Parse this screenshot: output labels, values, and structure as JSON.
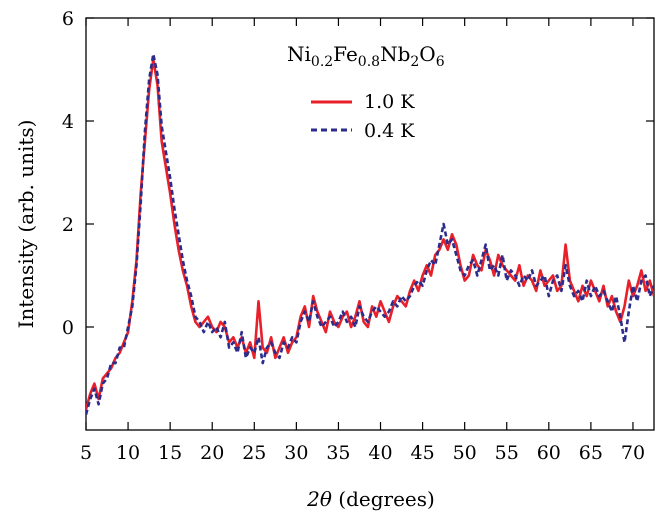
{
  "chart_data": {
    "type": "line",
    "title": "Ni",
    "title_parts": {
      "base1": "Ni",
      "sub1": "0.2",
      "base2": "Fe",
      "sub2": "0.8",
      "base3": "Nb",
      "sub3": "2",
      "base4": "O",
      "sub4": "6"
    },
    "xlabel_italic": "2θ",
    "xlabel_rest": " (degrees)",
    "ylabel": "Intensity (arb. units)",
    "xlim": [
      5,
      72.5
    ],
    "ylim": [
      -2,
      6
    ],
    "xticks": [
      5,
      10,
      15,
      20,
      25,
      30,
      35,
      40,
      45,
      50,
      55,
      60,
      65,
      70
    ],
    "xtick_labels": [
      "5",
      "10",
      "15",
      "20",
      "25",
      "30",
      "35",
      "40",
      "45",
      "50",
      "55",
      "60",
      "65",
      "70"
    ],
    "yticks": [
      0,
      2,
      4,
      6
    ],
    "ytick_labels": [
      "0",
      "2",
      "4",
      "6"
    ],
    "legend_position": "top-right",
    "series": [
      {
        "name": "1.0 K",
        "color": "#e8202a",
        "style": "solid",
        "x": [
          5,
          5.5,
          6,
          6.5,
          7,
          7.5,
          8,
          8.5,
          9,
          9.5,
          10,
          10.5,
          11,
          11.5,
          12,
          12.5,
          13,
          13.5,
          14,
          14.5,
          15,
          15.5,
          16,
          16.5,
          17,
          17.5,
          18,
          18.5,
          19,
          19.5,
          20,
          20.5,
          21,
          21.5,
          22,
          22.5,
          23,
          23.5,
          24,
          24.5,
          25,
          25.5,
          26,
          26.5,
          27,
          27.5,
          28,
          28.5,
          29,
          29.5,
          30,
          30.5,
          31,
          31.5,
          32,
          32.5,
          33,
          33.5,
          34,
          34.5,
          35,
          35.5,
          36,
          36.5,
          37,
          37.5,
          38,
          38.5,
          39,
          39.5,
          40,
          40.5,
          41,
          41.5,
          42,
          42.5,
          43,
          43.5,
          44,
          44.5,
          45,
          45.5,
          46,
          46.5,
          47,
          47.5,
          48,
          48.5,
          49,
          49.5,
          50,
          50.5,
          51,
          51.5,
          52,
          52.5,
          53,
          53.5,
          54,
          54.5,
          55,
          55.5,
          56,
          56.5,
          57,
          57.5,
          58,
          58.5,
          59,
          59.5,
          60,
          60.5,
          61,
          61.5,
          62,
          62.5,
          63,
          63.5,
          64,
          64.5,
          65,
          65.5,
          66,
          66.5,
          67,
          67.5,
          68,
          68.5,
          69,
          69.5,
          70,
          70.5,
          71,
          71.5,
          72,
          72.5
        ],
        "y": [
          -1.6,
          -1.3,
          -1.1,
          -1.4,
          -1.0,
          -0.9,
          -0.8,
          -0.6,
          -0.5,
          -0.3,
          -0.1,
          0.5,
          1.3,
          2.6,
          3.6,
          4.6,
          5.2,
          4.7,
          3.6,
          3.1,
          2.6,
          2.0,
          1.5,
          1.1,
          0.8,
          0.4,
          0.1,
          0.0,
          0.1,
          0.2,
          0.0,
          -0.1,
          0.1,
          0.0,
          -0.3,
          -0.2,
          -0.4,
          -0.2,
          -0.5,
          -0.3,
          -0.6,
          0.5,
          -0.4,
          -0.5,
          -0.2,
          -0.6,
          -0.4,
          -0.2,
          -0.5,
          -0.3,
          -0.2,
          0.2,
          0.4,
          0.0,
          0.6,
          0.3,
          0.1,
          -0.1,
          0.3,
          0.1,
          0.0,
          0.2,
          0.3,
          0.0,
          0.2,
          0.5,
          0.1,
          0.0,
          0.4,
          0.2,
          0.5,
          0.3,
          0.1,
          0.4,
          0.6,
          0.5,
          0.4,
          0.7,
          0.9,
          0.7,
          1.0,
          1.2,
          1.0,
          1.4,
          1.5,
          1.7,
          1.5,
          1.8,
          1.6,
          1.2,
          0.9,
          1.0,
          1.4,
          1.2,
          1.1,
          1.5,
          1.3,
          1.0,
          1.4,
          1.2,
          1.1,
          1.0,
          0.9,
          1.2,
          0.8,
          1.0,
          0.9,
          0.7,
          1.1,
          0.8,
          0.9,
          1.0,
          0.7,
          0.8,
          1.6,
          0.9,
          0.7,
          0.5,
          0.8,
          0.6,
          0.9,
          0.7,
          0.5,
          0.8,
          0.4,
          0.6,
          0.3,
          0.1,
          0.4,
          0.9,
          0.6,
          0.8,
          1.1,
          0.7,
          0.9,
          0.6
        ]
      },
      {
        "name": "0.4 K",
        "color": "#2b2c8c",
        "style": "dashed",
        "x": [
          5,
          5.5,
          6,
          6.5,
          7,
          7.5,
          8,
          8.5,
          9,
          9.5,
          10,
          10.5,
          11,
          11.5,
          12,
          12.5,
          13,
          13.5,
          14,
          14.5,
          15,
          15.5,
          16,
          16.5,
          17,
          17.5,
          18,
          18.5,
          19,
          19.5,
          20,
          20.5,
          21,
          21.5,
          22,
          22.5,
          23,
          23.5,
          24,
          24.5,
          25,
          25.5,
          26,
          26.5,
          27,
          27.5,
          28,
          28.5,
          29,
          29.5,
          30,
          30.5,
          31,
          31.5,
          32,
          32.5,
          33,
          33.5,
          34,
          34.5,
          35,
          35.5,
          36,
          36.5,
          37,
          37.5,
          38,
          38.5,
          39,
          39.5,
          40,
          40.5,
          41,
          41.5,
          42,
          42.5,
          43,
          43.5,
          44,
          44.5,
          45,
          45.5,
          46,
          46.5,
          47,
          47.5,
          48,
          48.5,
          49,
          49.5,
          50,
          50.5,
          51,
          51.5,
          52,
          52.5,
          53,
          53.5,
          54,
          54.5,
          55,
          55.5,
          56,
          56.5,
          57,
          57.5,
          58,
          58.5,
          59,
          59.5,
          60,
          60.5,
          61,
          61.5,
          62,
          62.5,
          63,
          63.5,
          64,
          64.5,
          65,
          65.5,
          66,
          66.5,
          67,
          67.5,
          68,
          68.5,
          69,
          69.5,
          70,
          70.5,
          71,
          71.5,
          72,
          72.5
        ],
        "y": [
          -1.7,
          -1.4,
          -1.2,
          -1.5,
          -1.1,
          -1.0,
          -0.7,
          -0.7,
          -0.4,
          -0.4,
          0.0,
          0.4,
          1.2,
          2.4,
          3.8,
          4.8,
          5.3,
          4.9,
          3.9,
          3.4,
          2.9,
          2.3,
          1.8,
          1.3,
          0.9,
          0.6,
          0.2,
          0.1,
          -0.1,
          0.1,
          -0.1,
          0.0,
          -0.2,
          0.1,
          -0.4,
          -0.3,
          -0.5,
          -0.1,
          -0.6,
          -0.4,
          -0.5,
          -0.2,
          -0.7,
          -0.4,
          -0.3,
          -0.5,
          -0.6,
          -0.3,
          -0.4,
          -0.2,
          -0.3,
          0.1,
          0.3,
          0.1,
          0.5,
          0.2,
          0.0,
          0.1,
          0.2,
          0.0,
          0.1,
          0.3,
          0.1,
          0.2,
          0.0,
          0.4,
          0.2,
          0.1,
          0.3,
          0.4,
          0.3,
          0.2,
          0.3,
          0.5,
          0.4,
          0.6,
          0.5,
          0.6,
          0.8,
          0.9,
          0.8,
          1.1,
          1.3,
          1.2,
          1.6,
          2.0,
          1.6,
          1.7,
          1.4,
          1.1,
          1.0,
          1.2,
          1.3,
          1.0,
          1.3,
          1.6,
          1.1,
          1.2,
          1.0,
          1.4,
          0.9,
          1.1,
          1.0,
          0.8,
          1.0,
          0.9,
          1.1,
          0.8,
          0.9,
          1.0,
          0.6,
          0.9,
          1.0,
          0.7,
          1.2,
          0.8,
          0.6,
          0.7,
          0.5,
          0.9,
          0.6,
          0.8,
          0.6,
          0.7,
          0.5,
          0.3,
          0.6,
          0.2,
          -0.3,
          0.3,
          0.8,
          0.5,
          0.9,
          1.0,
          0.6,
          0.8
        ]
      }
    ]
  }
}
